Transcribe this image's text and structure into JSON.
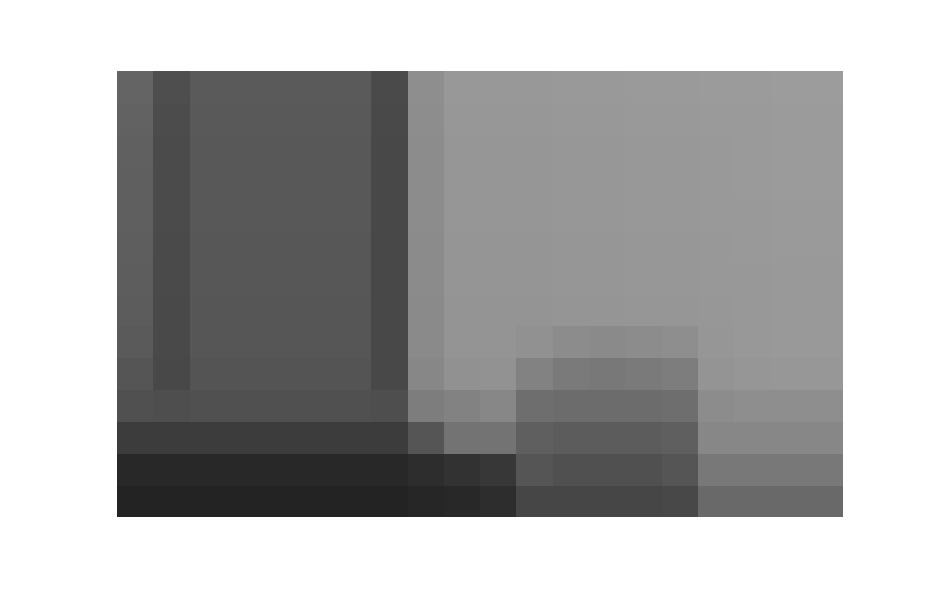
{
  "chart_data": {
    "type": "heatmap",
    "tick_labels": false,
    "zlim": [
      0,
      255
    ],
    "cells": [
      [
        100,
        78,
        90,
        90,
        90,
        90,
        90,
        74,
        142,
        152,
        152,
        152,
        153,
        153,
        154,
        154,
        155,
        155,
        156,
        156
      ],
      [
        98,
        76,
        89,
        89,
        89,
        89,
        89,
        73,
        141,
        151,
        151,
        151,
        152,
        152,
        153,
        153,
        154,
        154,
        155,
        155
      ],
      [
        96,
        75,
        88,
        88,
        88,
        88,
        88,
        72,
        140,
        150,
        150,
        150,
        151,
        151,
        152,
        152,
        153,
        154,
        155,
        155
      ],
      [
        95,
        75,
        88,
        88,
        88,
        88,
        88,
        72,
        140,
        150,
        150,
        150,
        151,
        151,
        152,
        152,
        153,
        154,
        155,
        155
      ],
      [
        95,
        75,
        88,
        88,
        88,
        88,
        88,
        72,
        140,
        150,
        150,
        150,
        151,
        151,
        152,
        152,
        153,
        153,
        154,
        154
      ],
      [
        94,
        74,
        87,
        87,
        87,
        87,
        87,
        72,
        139,
        149,
        149,
        149,
        150,
        150,
        151,
        151,
        152,
        153,
        154,
        154
      ],
      [
        93,
        74,
        87,
        87,
        87,
        87,
        87,
        72,
        139,
        149,
        149,
        149,
        150,
        150,
        151,
        151,
        152,
        152,
        153,
        153
      ],
      [
        92,
        73,
        86,
        86,
        86,
        86,
        86,
        72,
        138,
        148,
        148,
        148,
        149,
        149,
        150,
        150,
        151,
        152,
        153,
        153
      ],
      [
        90,
        73,
        86,
        86,
        86,
        86,
        86,
        72,
        138,
        148,
        148,
        145,
        140,
        138,
        140,
        142,
        150,
        152,
        153,
        153
      ],
      [
        85,
        72,
        84,
        84,
        84,
        84,
        84,
        72,
        135,
        145,
        146,
        130,
        122,
        120,
        122,
        125,
        148,
        150,
        151,
        151
      ],
      [
        80,
        78,
        80,
        80,
        80,
        80,
        80,
        78,
        125,
        130,
        135,
        110,
        108,
        108,
        108,
        110,
        140,
        142,
        142,
        142
      ],
      [
        60,
        60,
        60,
        60,
        60,
        60,
        60,
        60,
        85,
        115,
        115,
        95,
        92,
        92,
        92,
        95,
        135,
        135,
        135,
        135
      ],
      [
        40,
        40,
        40,
        40,
        40,
        40,
        40,
        40,
        45,
        50,
        55,
        85,
        80,
        80,
        80,
        85,
        120,
        120,
        120,
        120
      ],
      [
        35,
        35,
        35,
        35,
        35,
        35,
        35,
        35,
        38,
        40,
        45,
        70,
        70,
        70,
        70,
        72,
        105,
        105,
        105,
        105
      ]
    ]
  }
}
